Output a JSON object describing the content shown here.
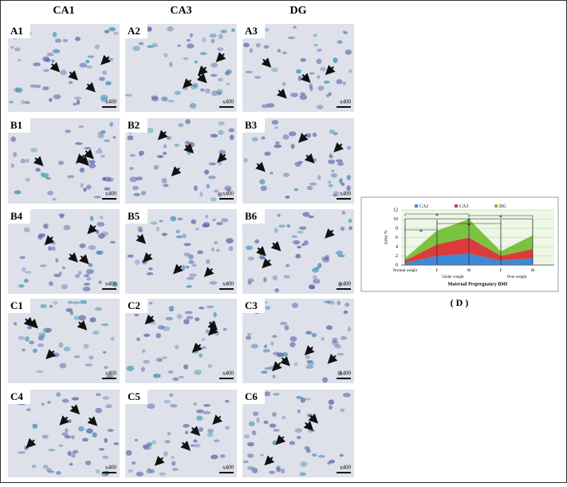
{
  "panels": {
    "columns": [
      "CA1",
      "CA3",
      "DG"
    ],
    "labels": [
      [
        "A1",
        "A2",
        "A3"
      ],
      [
        "B1",
        "B2",
        "B3"
      ],
      [
        "B4",
        "B5",
        "B6"
      ],
      [
        "C1",
        "C2",
        "C3"
      ],
      [
        "C4",
        "C5",
        "C6"
      ]
    ],
    "magnification": "x400"
  },
  "chart_data": {
    "type": "stacked-area",
    "categories": [
      "Normal weight",
      "F",
      "M",
      "F",
      "M"
    ],
    "groups": [
      "Under weight",
      "Over weight"
    ],
    "series": [
      {
        "name": "CA1",
        "color": "#3f88d6",
        "values": [
          0.5,
          2,
          2.5,
          1,
          1.5
        ]
      },
      {
        "name": "CA3",
        "color": "#dc3b3b",
        "values": [
          0.5,
          2.5,
          3.5,
          1,
          2
        ]
      },
      {
        "name": "DG",
        "color": "#7cc242",
        "values": [
          0.5,
          3,
          4,
          1,
          3
        ]
      }
    ],
    "ylim": [
      0,
      12
    ],
    "yticks": [
      0,
      2,
      4,
      6,
      8,
      10,
      12
    ],
    "ylabel": "Area %",
    "xlabel": "Maternal Prepregnancy BMI",
    "annotations": [
      "*",
      "*",
      "*",
      "*",
      "*"
    ],
    "caption": "( D )",
    "grid": true
  }
}
